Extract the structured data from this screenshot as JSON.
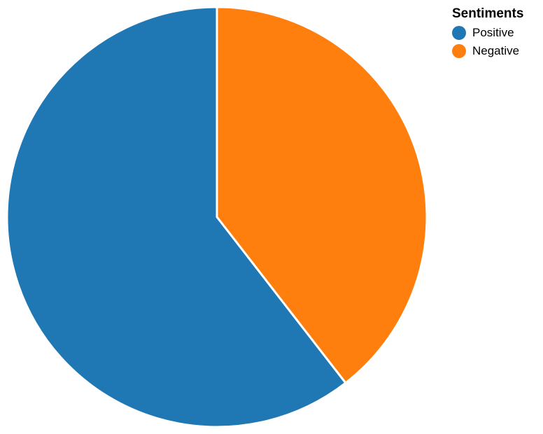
{
  "chart_data": {
    "type": "pie",
    "title": "",
    "legend_title": "Sentiments",
    "legend_position": "top-right",
    "start_angle_deg": 0,
    "slices": [
      {
        "label": "Negative",
        "value": 39.5,
        "color": "#ff7f0e"
      },
      {
        "label": "Positive",
        "value": 60.5,
        "color": "#1f77b4"
      }
    ],
    "legend_order": [
      "Positive",
      "Negative"
    ]
  }
}
